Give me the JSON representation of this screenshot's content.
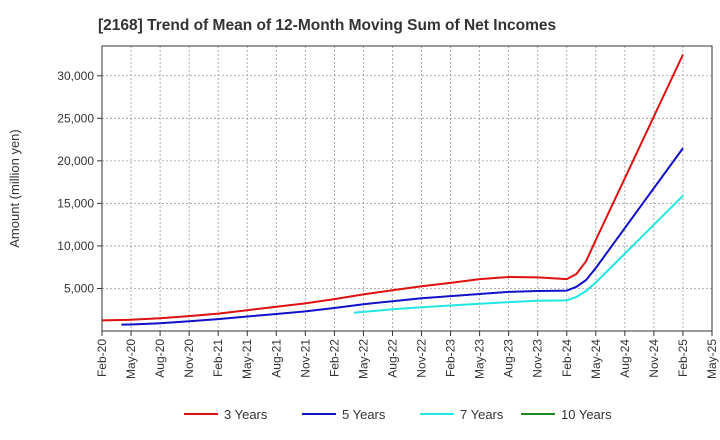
{
  "chart_data": {
    "type": "line",
    "title": "[2168]  Trend of Mean of 12-Month Moving Sum of Net Incomes",
    "xlabel": "",
    "ylabel": "Amount (million yen)",
    "ylim": [
      0,
      33500
    ],
    "yticks": [
      5000,
      10000,
      15000,
      20000,
      25000,
      30000
    ],
    "ytick_labels": [
      "5,000",
      "10,000",
      "15,000",
      "20,000",
      "25,000",
      "30,000"
    ],
    "x_tick_labels": [
      "Feb-20",
      "May-20",
      "Aug-20",
      "Nov-20",
      "Feb-21",
      "May-21",
      "Aug-21",
      "Nov-21",
      "Feb-22",
      "May-22",
      "Aug-22",
      "Nov-22",
      "Feb-23",
      "May-23",
      "Aug-23",
      "Nov-23",
      "Feb-24",
      "May-24",
      "Aug-24",
      "Nov-24",
      "Feb-25",
      "May-25"
    ],
    "grid": true,
    "legend_position": "bottom",
    "series": [
      {
        "name": "3 Years",
        "color": "#dd1111",
        "points": [
          [
            "2020-02",
            1250
          ],
          [
            "2020-05",
            1320
          ],
          [
            "2020-08",
            1500
          ],
          [
            "2020-11",
            1750
          ],
          [
            "2021-02",
            2050
          ],
          [
            "2021-05",
            2450
          ],
          [
            "2021-08",
            2850
          ],
          [
            "2021-11",
            3250
          ],
          [
            "2022-02",
            3750
          ],
          [
            "2022-05",
            4300
          ],
          [
            "2022-08",
            4800
          ],
          [
            "2022-11",
            5250
          ],
          [
            "2023-02",
            5650
          ],
          [
            "2023-05",
            6100
          ],
          [
            "2023-08",
            6350
          ],
          [
            "2023-11",
            6300
          ],
          [
            "2024-02",
            6100
          ],
          [
            "2024-03",
            6700
          ],
          [
            "2024-04",
            8200
          ],
          [
            "2024-05",
            10700
          ],
          [
            "2025-02",
            32500
          ]
        ]
      },
      {
        "name": "5 Years",
        "color": "#1111cc",
        "points": [
          [
            "2020-04",
            750
          ],
          [
            "2020-05",
            760
          ],
          [
            "2020-08",
            900
          ],
          [
            "2020-11",
            1150
          ],
          [
            "2021-02",
            1400
          ],
          [
            "2021-05",
            1700
          ],
          [
            "2021-08",
            2000
          ],
          [
            "2021-11",
            2300
          ],
          [
            "2022-02",
            2700
          ],
          [
            "2022-05",
            3150
          ],
          [
            "2022-08",
            3500
          ],
          [
            "2022-11",
            3850
          ],
          [
            "2023-02",
            4100
          ],
          [
            "2023-05",
            4350
          ],
          [
            "2023-08",
            4600
          ],
          [
            "2023-11",
            4700
          ],
          [
            "2024-02",
            4750
          ],
          [
            "2024-03",
            5200
          ],
          [
            "2024-04",
            6000
          ],
          [
            "2024-05",
            7400
          ],
          [
            "2025-02",
            21500
          ]
        ]
      },
      {
        "name": "7 Years",
        "color": "#22e5e5",
        "points": [
          [
            "2022-04",
            2150
          ],
          [
            "2022-05",
            2250
          ],
          [
            "2022-08",
            2550
          ],
          [
            "2022-11",
            2800
          ],
          [
            "2023-02",
            3000
          ],
          [
            "2023-05",
            3200
          ],
          [
            "2023-08",
            3400
          ],
          [
            "2023-11",
            3550
          ],
          [
            "2024-02",
            3600
          ],
          [
            "2024-03",
            4000
          ],
          [
            "2024-04",
            4700
          ],
          [
            "2024-05",
            5700
          ],
          [
            "2025-02",
            15900
          ]
        ]
      },
      {
        "name": "10 Years",
        "color": "#228822",
        "points": []
      }
    ]
  }
}
